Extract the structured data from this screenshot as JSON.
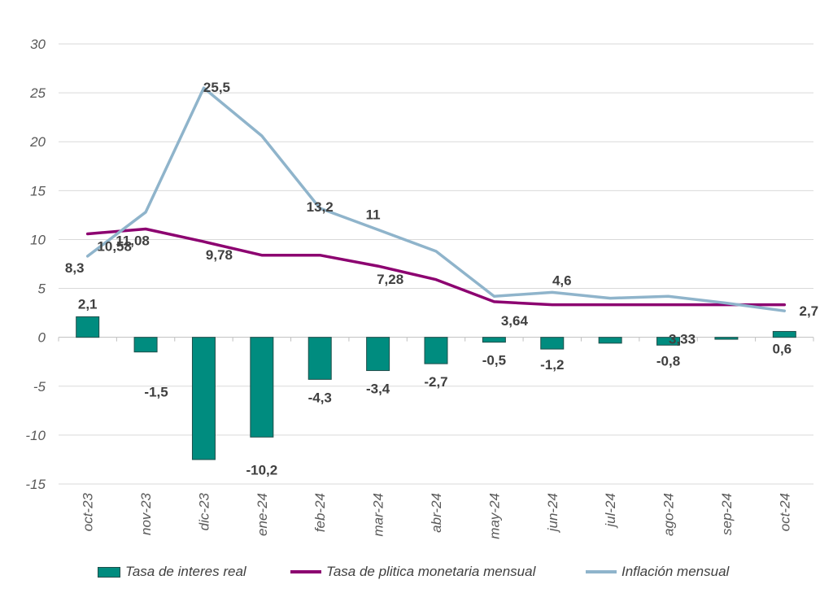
{
  "chart_data": {
    "type": "bar+line",
    "categories": [
      "oct-23",
      "nov-23",
      "dic-23",
      "ene-24",
      "feb-24",
      "mar-24",
      "abr-24",
      "may-24",
      "jun-24",
      "jul-24",
      "ago-24",
      "sep-24",
      "oct-24"
    ],
    "ylim": [
      -15,
      30
    ],
    "yticks": [
      -15,
      -10,
      -5,
      0,
      5,
      10,
      15,
      20,
      25,
      30
    ],
    "ytick_labels": [
      "-15",
      "-10",
      "-5",
      "0",
      "5",
      "10",
      "15",
      "20",
      "25",
      "30"
    ],
    "grid": true,
    "legend_position": "bottom",
    "series": [
      {
        "name": "Tasa de interes real",
        "type": "bar",
        "color": "#008c7f",
        "values": [
          2.1,
          -1.5,
          -12.5,
          -10.2,
          -4.3,
          -3.4,
          -2.7,
          -0.5,
          -1.2,
          -0.6,
          -0.8,
          -0.2,
          0.6
        ],
        "labels": [
          "2,1",
          "-1,5",
          "",
          "-10,2",
          "-4,3",
          "-3,4",
          "-2,7",
          "-0,5",
          "-1,2",
          "",
          "-0,8",
          "",
          "0,6"
        ]
      },
      {
        "name": "Tasa de plitica monetaria mensual",
        "type": "line",
        "color": "#8c0070",
        "values": [
          10.58,
          11.08,
          9.78,
          8.4,
          8.4,
          7.28,
          5.9,
          3.64,
          3.33,
          3.33,
          3.33,
          3.33,
          3.33
        ],
        "labels": [
          "10,58",
          "11,08",
          "9,78",
          "",
          "",
          "7,28",
          "",
          "3,64",
          "",
          "",
          "3,33",
          "",
          ""
        ]
      },
      {
        "name": "Inflación mensual",
        "type": "line",
        "color": "#8fb4cb",
        "values": [
          8.3,
          12.8,
          25.5,
          20.6,
          13.2,
          11.0,
          8.8,
          4.2,
          4.6,
          4.0,
          4.2,
          3.5,
          2.7
        ],
        "labels": [
          "8,3",
          "",
          "25,5",
          "",
          "13,2",
          "11",
          "",
          "",
          "4,6",
          "",
          "",
          "",
          "2,7"
        ]
      }
    ]
  }
}
